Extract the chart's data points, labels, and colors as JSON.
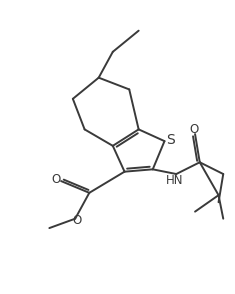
{
  "background": "#ffffff",
  "line_color": "#3a3a3a",
  "line_width": 1.4,
  "font_size": 8.5,
  "figsize": [
    2.35,
    2.94
  ],
  "dpi": 100,
  "xlim": [
    0,
    10
  ],
  "ylim": [
    0,
    12.5
  ]
}
